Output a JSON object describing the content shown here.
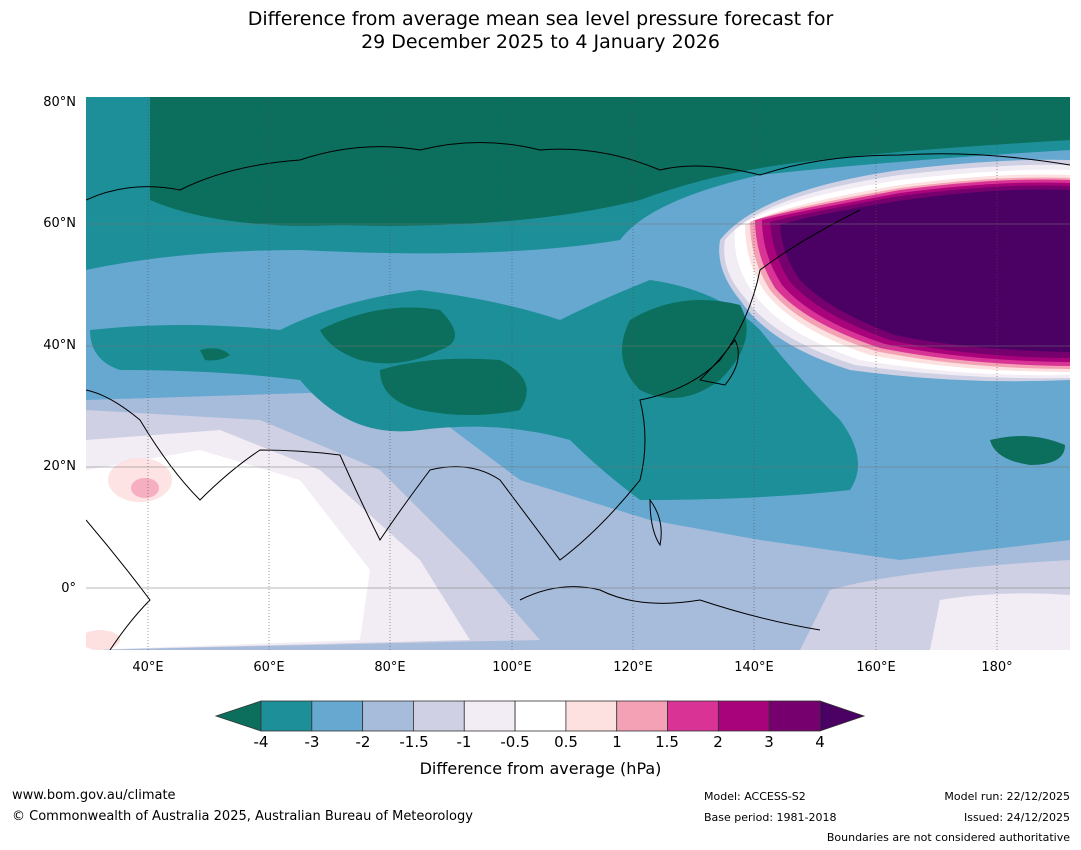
{
  "title": {
    "line1": "Difference from average mean sea level pressure forecast for",
    "line2": "29 December 2025 to 4 January 2026"
  },
  "map": {
    "lat_labels": [
      "80°N",
      "60°N",
      "40°N",
      "20°N",
      "0°"
    ],
    "lon_labels": [
      "40°E",
      "60°E",
      "80°E",
      "100°E",
      "120°E",
      "140°E",
      "160°E",
      "180°"
    ]
  },
  "colorbar": {
    "ticks": [
      "-4",
      "-3",
      "-2",
      "-1.5",
      "-1",
      "-0.5",
      "0.5",
      "1",
      "1.5",
      "2",
      "3",
      "4"
    ],
    "colors": [
      "#0c6e5c",
      "#1c8f98",
      "#66a8d0",
      "#a7bbdb",
      "#cfd0e4",
      "#f2ecf4",
      "#ffffff",
      "#fde0e0",
      "#f4a1b6",
      "#d93495",
      "#a8037a",
      "#76006d",
      "#4b0063"
    ],
    "title": "Difference from average (hPa)"
  },
  "footer": {
    "website": "www.bom.gov.au/climate",
    "copyright": "© Commonwealth of Australia 2025, Australian Bureau of Meteorology",
    "model": "Model: ACCESS-S2",
    "base_period": "Base period: 1981-2018",
    "model_run": "Model run: 22/12/2025",
    "issued": "Issued: 24/12/2025",
    "boundaries": "Boundaries are not considered authoritative"
  }
}
